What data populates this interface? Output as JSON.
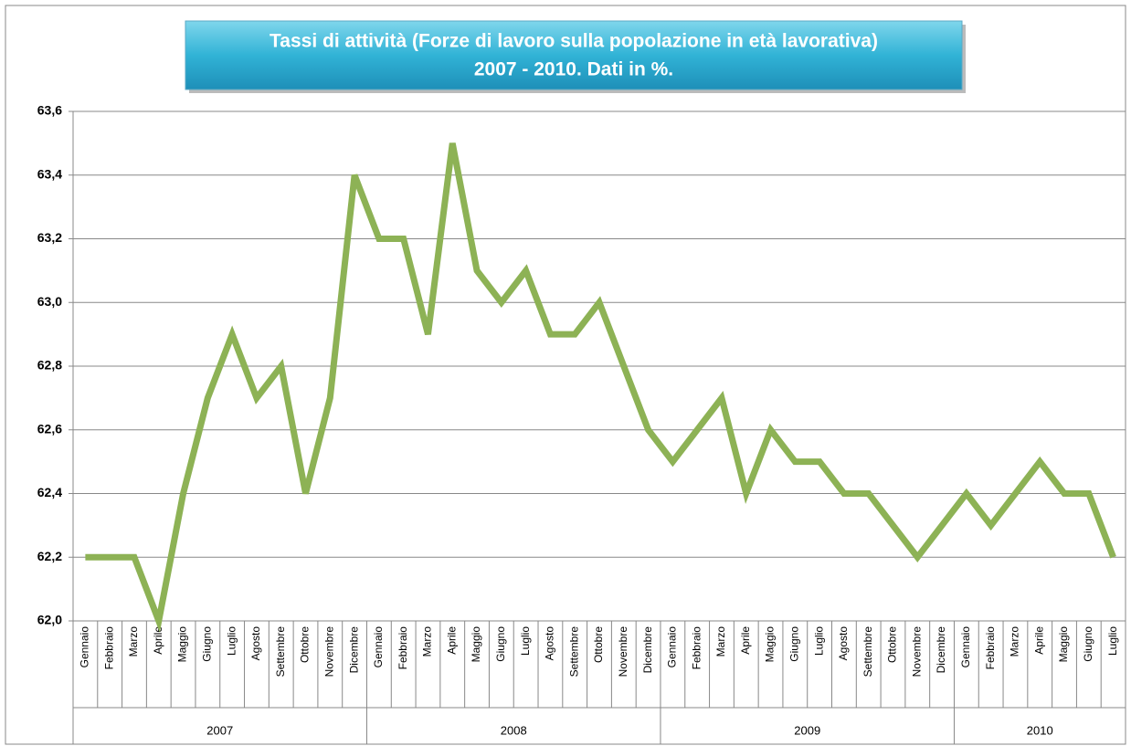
{
  "chart_data": {
    "type": "line",
    "title": [
      "Tassi di attività (Forze di lavoro sulla popolazione in età lavorativa)",
      "2007  - 2010. Dati in %."
    ],
    "groups": [
      {
        "label": "2007",
        "categories": [
          "Gennaio",
          "Febbraio",
          "Marzo",
          "Aprile",
          "Maggio",
          "Giugno",
          "Luglio",
          "Agosto",
          "Settembre",
          "Ottobre",
          "Novembre",
          "Dicembre"
        ]
      },
      {
        "label": "2008",
        "categories": [
          "Gennaio",
          "Febbraio",
          "Marzo",
          "Aprile",
          "Maggio",
          "Giugno",
          "Luglio",
          "Agosto",
          "Settembre",
          "Ottobre",
          "Novembre",
          "Dicembre"
        ]
      },
      {
        "label": "2009",
        "categories": [
          "Gennaio",
          "Febbraio",
          "Marzo",
          "Aprile",
          "Maggio",
          "Giugno",
          "Luglio",
          "Agosto",
          "Settembre",
          "Ottobre",
          "Novembre",
          "Dicembre"
        ]
      },
      {
        "label": "2010",
        "categories": [
          "Gennaio",
          "Febbraio",
          "Marzo",
          "Aprile",
          "Maggio",
          "Giugno",
          "Luglio"
        ]
      }
    ],
    "values": [
      62.2,
      62.2,
      62.2,
      62.0,
      62.4,
      62.7,
      62.9,
      62.7,
      62.8,
      62.4,
      62.7,
      63.4,
      63.2,
      63.2,
      62.9,
      63.5,
      63.1,
      63.0,
      63.1,
      62.9,
      62.9,
      63.0,
      62.8,
      62.6,
      62.5,
      62.6,
      62.7,
      62.4,
      62.6,
      62.5,
      62.5,
      62.4,
      62.4,
      62.3,
      62.2,
      62.3,
      62.4,
      62.3,
      62.4,
      62.5,
      62.4,
      62.4,
      62.2
    ],
    "color": "#8db255",
    "ylim": [
      62.0,
      63.6
    ],
    "yticks": [
      {
        "value": 62.0,
        "label": "62,0"
      },
      {
        "value": 62.2,
        "label": "62,2"
      },
      {
        "value": 62.4,
        "label": "62,4"
      },
      {
        "value": 62.6,
        "label": "62,6"
      },
      {
        "value": 62.8,
        "label": "62,8"
      },
      {
        "value": 63.0,
        "label": "63,0"
      },
      {
        "value": 63.2,
        "label": "63,2"
      },
      {
        "value": 63.4,
        "label": "63,4"
      },
      {
        "value": 63.6,
        "label": "63,6"
      }
    ],
    "grid": true
  }
}
